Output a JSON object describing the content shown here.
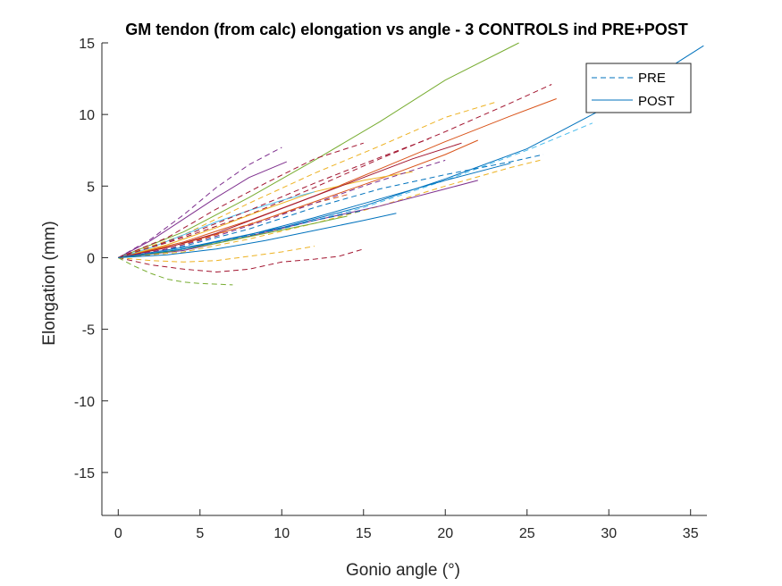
{
  "chart_data": {
    "type": "line",
    "title": "GM tendon (from calc) elongation vs angle - 3 CONTROLS ind PRE+POST",
    "xlabel": "Gonio angle (°)",
    "ylabel": "Elongation (mm)",
    "xlim": [
      -1,
      36
    ],
    "ylim": [
      -18,
      15
    ],
    "xticks": [
      0,
      5,
      10,
      15,
      20,
      25,
      30,
      35
    ],
    "yticks": [
      -15,
      -10,
      -5,
      0,
      5,
      10,
      15
    ],
    "xtick_labels": [
      "0",
      "5",
      "10",
      "15",
      "20",
      "25",
      "30",
      "35"
    ],
    "ytick_labels": [
      "-15",
      "-10",
      "-5",
      "0",
      "5",
      "10",
      "15"
    ],
    "grid": false,
    "legend_position": "top-right",
    "legend": [
      {
        "label": "PRE",
        "style": "dashed",
        "color": "#0072bd"
      },
      {
        "label": "POST",
        "style": "solid",
        "color": "#0072bd"
      }
    ],
    "series": [
      {
        "condition": "PRE",
        "color": "#7e2f8e",
        "x": [
          0,
          2,
          4,
          6,
          8,
          10
        ],
        "y": [
          0,
          1.3,
          3,
          4.9,
          6.5,
          7.7
        ]
      },
      {
        "condition": "POST",
        "color": "#7e2f8e",
        "x": [
          0,
          2,
          4,
          6,
          8,
          10.3
        ],
        "y": [
          0,
          1.2,
          2.7,
          4.2,
          5.6,
          6.7
        ]
      },
      {
        "condition": "POST",
        "color": "#77ac30",
        "x": [
          0,
          4,
          8,
          12,
          16,
          20,
          24.5
        ],
        "y": [
          0,
          1.8,
          4.2,
          6.8,
          9.5,
          12.4,
          15
        ]
      },
      {
        "condition": "PRE",
        "color": "#edb120",
        "x": [
          0,
          4,
          8,
          12,
          16,
          20,
          23.2
        ],
        "y": [
          0,
          1.6,
          3.8,
          5.9,
          7.8,
          9.8,
          10.9
        ]
      },
      {
        "condition": "PRE",
        "color": "#a2142f",
        "x": [
          0,
          4,
          8,
          12,
          16,
          20,
          24,
          26.5
        ],
        "y": [
          0,
          1.4,
          3,
          4.9,
          6.9,
          8.8,
          10.8,
          12.1
        ]
      },
      {
        "condition": "POST",
        "color": "#d95319",
        "x": [
          0,
          4,
          8,
          12,
          16,
          20,
          24,
          26.8
        ],
        "y": [
          0,
          1.1,
          2.6,
          4.3,
          6.2,
          8.1,
          9.9,
          11.1
        ]
      },
      {
        "condition": "POST",
        "color": "#0072bd",
        "x": [
          0,
          5,
          10,
          15,
          20,
          25,
          30,
          35.8
        ],
        "y": [
          0,
          0.9,
          2.1,
          3.6,
          5.5,
          7.6,
          10.6,
          14.8
        ]
      },
      {
        "condition": "PRE",
        "color": "#4dbeee",
        "x": [
          0,
          5,
          10,
          15,
          20,
          25,
          29
        ],
        "y": [
          0,
          0.8,
          2,
          3.5,
          5.4,
          7.5,
          9.4
        ]
      },
      {
        "condition": "PRE",
        "color": "#0072bd",
        "x": [
          0,
          4,
          8,
          12,
          16,
          20,
          24,
          26
        ],
        "y": [
          0,
          0.8,
          2,
          3.5,
          4.8,
          5.8,
          6.7,
          7.2
        ]
      },
      {
        "condition": "PRE",
        "color": "#edb120",
        "x": [
          0,
          4,
          8,
          12,
          16,
          20,
          24,
          25.8
        ],
        "y": [
          0,
          0.4,
          1.3,
          2.4,
          3.6,
          5,
          6.3,
          6.8
        ]
      },
      {
        "condition": "POST",
        "color": "#7e2f8e",
        "x": [
          0,
          4,
          8,
          12,
          16,
          20,
          22
        ],
        "y": [
          0,
          0.5,
          1.5,
          2.6,
          3.6,
          4.8,
          5.4
        ]
      },
      {
        "condition": "PRE",
        "color": "#a2142f",
        "x": [
          0,
          3,
          6,
          9,
          12,
          15
        ],
        "y": [
          0,
          1.4,
          3.4,
          5.2,
          6.9,
          8
        ]
      },
      {
        "condition": "PRE",
        "color": "#a2142f",
        "x": [
          0,
          2,
          4,
          6,
          8,
          10,
          12,
          13.5,
          15
        ],
        "y": [
          0,
          -0.5,
          -0.8,
          -1,
          -0.8,
          -0.3,
          -0.1,
          0.1,
          0.6
        ]
      },
      {
        "condition": "PRE",
        "color": "#77ac30",
        "x": [
          0,
          1,
          2,
          3,
          4,
          5,
          7
        ],
        "y": [
          0,
          -0.6,
          -1.1,
          -1.5,
          -1.7,
          -1.8,
          -1.9
        ]
      },
      {
        "condition": "PRE",
        "color": "#edb120",
        "x": [
          0,
          2,
          4,
          6,
          8,
          10,
          12
        ],
        "y": [
          0,
          -0.2,
          -0.3,
          -0.2,
          0.1,
          0.4,
          0.8
        ]
      },
      {
        "condition": "POST",
        "color": "#0072bd",
        "x": [
          0,
          3,
          6,
          9,
          12,
          15,
          17
        ],
        "y": [
          0,
          0.2,
          0.6,
          1.2,
          1.9,
          2.6,
          3.1
        ]
      },
      {
        "condition": "POST",
        "color": "#d95319",
        "x": [
          0,
          4,
          8,
          12,
          16,
          20,
          22
        ],
        "y": [
          0,
          1,
          2.3,
          3.9,
          5.5,
          7.2,
          8.2
        ]
      },
      {
        "condition": "POST",
        "color": "#edb120",
        "x": [
          0,
          3,
          6,
          9,
          12,
          15,
          18
        ],
        "y": [
          0,
          0.9,
          2.1,
          3.4,
          4.6,
          5.4,
          6
        ]
      },
      {
        "condition": "PRE",
        "color": "#d95319",
        "x": [
          0,
          3,
          6,
          9,
          12,
          14
        ],
        "y": [
          0,
          0.6,
          1.6,
          2.7,
          3.8,
          4.4
        ]
      },
      {
        "condition": "POST",
        "color": "#4dbeee",
        "x": [
          0,
          2,
          4,
          6,
          8,
          10,
          12
        ],
        "y": [
          0,
          0.7,
          1.6,
          2.5,
          3.3,
          4,
          4.6
        ]
      },
      {
        "condition": "PRE",
        "color": "#0072bd",
        "x": [
          0,
          3,
          6,
          9,
          12,
          15
        ],
        "y": [
          0,
          0.4,
          1,
          1.8,
          2.6,
          3.3
        ]
      },
      {
        "condition": "POST",
        "color": "#a2142f",
        "x": [
          0,
          3,
          6,
          9,
          12,
          15,
          18,
          21
        ],
        "y": [
          0,
          0.7,
          1.7,
          3,
          4.3,
          5.6,
          6.9,
          8
        ]
      },
      {
        "condition": "PRE",
        "color": "#7e2f8e",
        "x": [
          0,
          3,
          6,
          9,
          12,
          15,
          18,
          20
        ],
        "y": [
          0,
          0.6,
          1.5,
          2.6,
          3.8,
          5,
          6.1,
          6.8
        ]
      },
      {
        "condition": "POST",
        "color": "#77ac30",
        "x": [
          0,
          3,
          6,
          9,
          12,
          14
        ],
        "y": [
          0,
          0.4,
          1,
          1.7,
          2.4,
          2.9
        ]
      },
      {
        "condition": "PRE",
        "color": "#a2142f",
        "x": [
          0,
          4,
          8,
          12,
          16,
          19
        ],
        "y": [
          0,
          1.5,
          3.3,
          5.2,
          7,
          8.3
        ]
      },
      {
        "condition": "POST",
        "color": "#0072bd",
        "x": [
          0,
          4,
          8,
          12,
          16,
          20,
          24
        ],
        "y": [
          0,
          0.6,
          1.6,
          2.8,
          4.1,
          5.4,
          6.6
        ]
      }
    ]
  }
}
